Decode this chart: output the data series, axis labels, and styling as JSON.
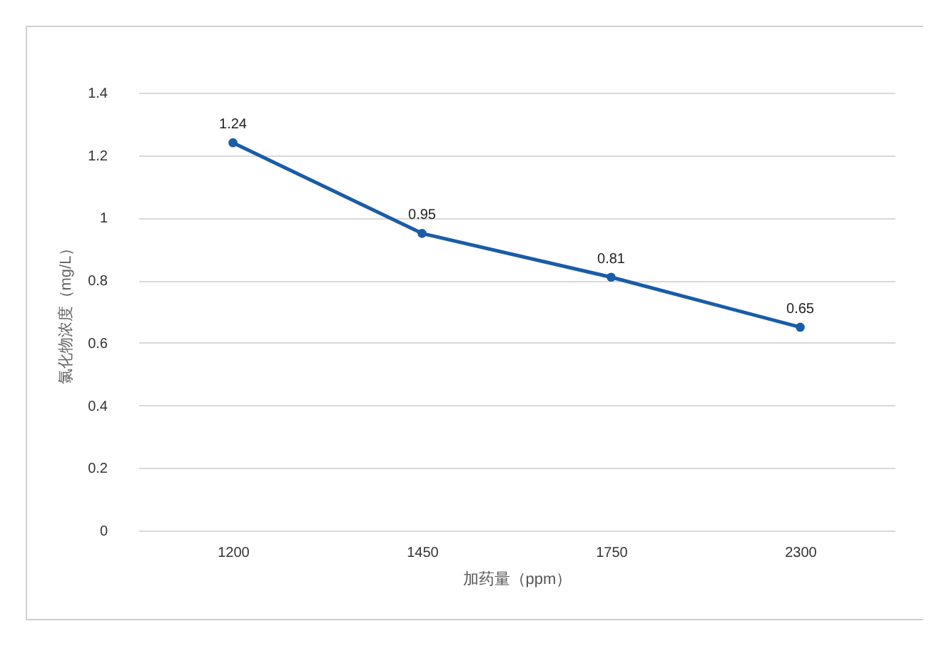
{
  "chart_data": {
    "type": "line",
    "xlabel": "加药量（ppm）",
    "ylabel": "氯化物浓度（mg/L）",
    "categories": [
      "1200",
      "1450",
      "1750",
      "2300"
    ],
    "series": [
      {
        "color": "#1a5ca8",
        "values": [
          1.24,
          0.95,
          0.81,
          0.65
        ]
      }
    ],
    "ylim": [
      0,
      1.4
    ],
    "yticks": [
      0,
      0.2,
      0.4,
      0.6,
      0.8,
      1,
      1.2,
      1.4
    ],
    "grid": "y",
    "marker": "circle",
    "data_labels": true
  }
}
